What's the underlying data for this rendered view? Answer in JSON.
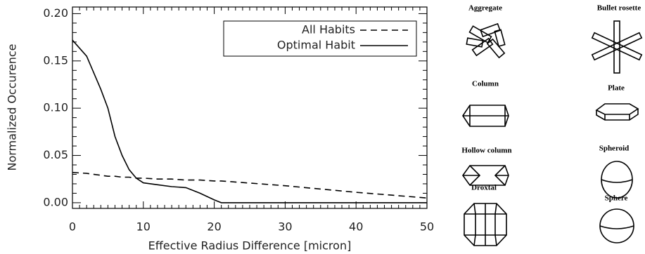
{
  "chart_data": {
    "type": "line",
    "xlabel": "Effective Radius Difference [micron]",
    "ylabel": "Normalized Occurence",
    "x": [
      0,
      2,
      4,
      5,
      6,
      7,
      8,
      9,
      10,
      12,
      14,
      16,
      18,
      20,
      21,
      30,
      40,
      45,
      50
    ],
    "series": [
      {
        "name": "All Habits",
        "color": "#000000",
        "linestyle": "dashed",
        "values": [
          0.032,
          0.031,
          0.029,
          0.028,
          0.028,
          0.027,
          0.027,
          0.026,
          0.026,
          0.025,
          0.025,
          0.024,
          0.024,
          0.023,
          0.023,
          0.018,
          0.011,
          0.008,
          0.005
        ]
      },
      {
        "name": "Optimal Habit",
        "color": "#000000",
        "linestyle": "solid",
        "values": [
          0.172,
          0.155,
          0.12,
          0.1,
          0.07,
          0.05,
          0.035,
          0.026,
          0.021,
          0.019,
          0.017,
          0.016,
          0.01,
          0.003,
          0.0,
          0.0,
          0.0,
          0.0,
          0.0
        ]
      }
    ],
    "xlim": [
      0,
      50
    ],
    "xticks": [
      0,
      10,
      20,
      30,
      40,
      50
    ],
    "ylim": [
      -0.006,
      0.207
    ],
    "yticks": [
      {
        "value": 0,
        "label": "0.00"
      },
      {
        "value": 0.05,
        "label": "0.05"
      },
      {
        "value": 0.1,
        "label": "0.10"
      },
      {
        "value": 0.15,
        "label": "0.15"
      },
      {
        "value": 0.2,
        "label": "0.20"
      }
    ],
    "legend": "upper right"
  },
  "habits": [
    "Aggregate",
    "Bullet rosette",
    "Column",
    "Plate",
    "Hollow column",
    "Spheroid",
    "Droxtal",
    "Sphere"
  ]
}
